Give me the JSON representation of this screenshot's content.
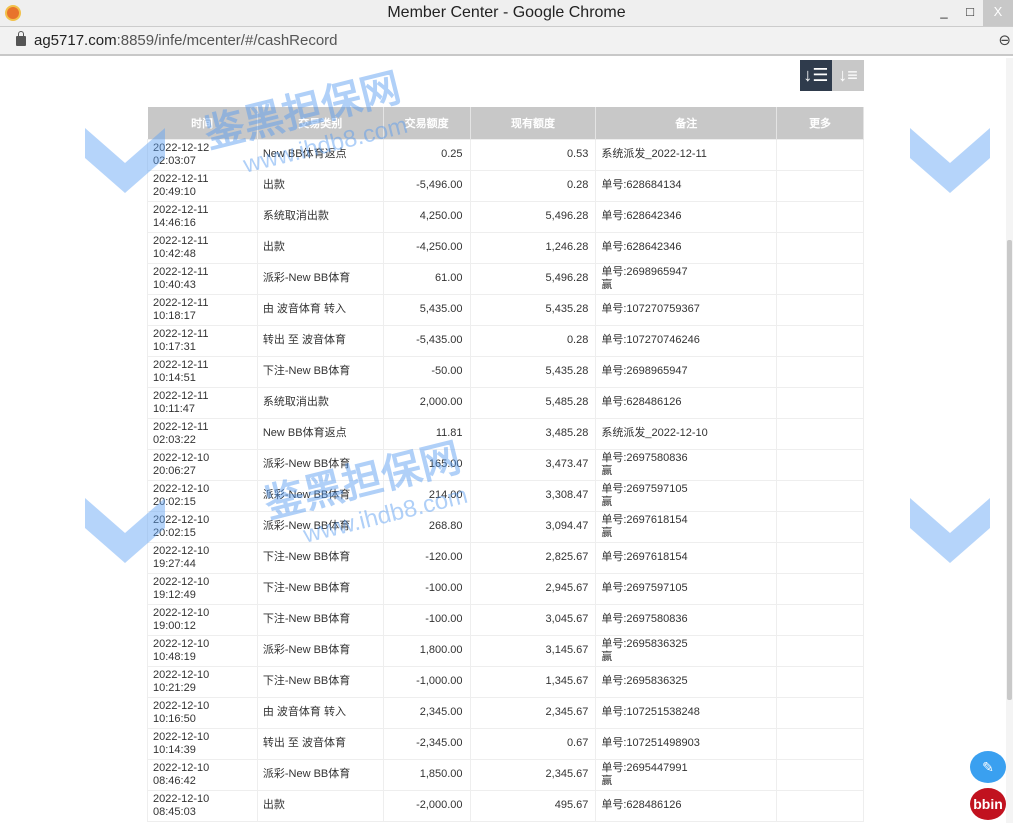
{
  "window": {
    "title": "Member Center - Google Chrome",
    "minimize": "_",
    "maximize": "□",
    "close": "X"
  },
  "address": {
    "host": "ag5717.com",
    "path": ":8859/infe/mcenter/#/cashRecord"
  },
  "watermark": {
    "text": "鉴黑担保网",
    "url": "www.ihdb8.com"
  },
  "sort": {
    "desc_icon": "sort-desc-icon",
    "asc_icon": "sort-asc-icon"
  },
  "table": {
    "headers": [
      "时间",
      "交易类别",
      "交易额度",
      "现有额度",
      "备注",
      "更多"
    ],
    "rows": [
      {
        "time": "2022-12-12 02:03:07",
        "type": "New BB体育返点",
        "amount": "0.25",
        "balance": "0.53",
        "note": "系统派发_2022-12-11",
        "note2": ""
      },
      {
        "time": "2022-12-11 20:49:10",
        "type": "出款",
        "amount": "-5,496.00",
        "balance": "0.28",
        "note": "单号:628684134",
        "note2": ""
      },
      {
        "time": "2022-12-11 14:46:16",
        "type": "系统取消出款",
        "amount": "4,250.00",
        "balance": "5,496.28",
        "note": "单号:628642346",
        "note2": ""
      },
      {
        "time": "2022-12-11 10:42:48",
        "type": "出款",
        "amount": "-4,250.00",
        "balance": "1,246.28",
        "note": "单号:628642346",
        "note2": ""
      },
      {
        "time": "2022-12-11 10:40:43",
        "type": "派彩-New BB体育",
        "amount": "61.00",
        "balance": "5,496.28",
        "note": "单号:2698965947",
        "note2": "赢"
      },
      {
        "time": "2022-12-11 10:18:17",
        "type": "由 波音体育 转入",
        "amount": "5,435.00",
        "balance": "5,435.28",
        "note": "单号:107270759367",
        "note2": ""
      },
      {
        "time": "2022-12-11 10:17:31",
        "type": "转出 至 波音体育",
        "amount": "-5,435.00",
        "balance": "0.28",
        "note": "单号:107270746246",
        "note2": ""
      },
      {
        "time": "2022-12-11 10:14:51",
        "type": "下注-New BB体育",
        "amount": "-50.00",
        "balance": "5,435.28",
        "note": "单号:2698965947",
        "note2": ""
      },
      {
        "time": "2022-12-11 10:11:47",
        "type": "系统取消出款",
        "amount": "2,000.00",
        "balance": "5,485.28",
        "note": "单号:628486126",
        "note2": ""
      },
      {
        "time": "2022-12-11 02:03:22",
        "type": "New BB体育返点",
        "amount": "11.81",
        "balance": "3,485.28",
        "note": "系统派发_2022-12-10",
        "note2": ""
      },
      {
        "time": "2022-12-10 20:06:27",
        "type": "派彩-New BB体育",
        "amount": "165.00",
        "balance": "3,473.47",
        "note": "单号:2697580836",
        "note2": "赢"
      },
      {
        "time": "2022-12-10 20:02:15",
        "type": "派彩-New BB体育",
        "amount": "214.00",
        "balance": "3,308.47",
        "note": "单号:2697597105",
        "note2": "赢"
      },
      {
        "time": "2022-12-10 20:02:15",
        "type": "派彩-New BB体育",
        "amount": "268.80",
        "balance": "3,094.47",
        "note": "单号:2697618154",
        "note2": "赢"
      },
      {
        "time": "2022-12-10 19:27:44",
        "type": "下注-New BB体育",
        "amount": "-120.00",
        "balance": "2,825.67",
        "note": "单号:2697618154",
        "note2": ""
      },
      {
        "time": "2022-12-10 19:12:49",
        "type": "下注-New BB体育",
        "amount": "-100.00",
        "balance": "2,945.67",
        "note": "单号:2697597105",
        "note2": ""
      },
      {
        "time": "2022-12-10 19:00:12",
        "type": "下注-New BB体育",
        "amount": "-100.00",
        "balance": "3,045.67",
        "note": "单号:2697580836",
        "note2": ""
      },
      {
        "time": "2022-12-10 10:48:19",
        "type": "派彩-New BB体育",
        "amount": "1,800.00",
        "balance": "3,145.67",
        "note": "单号:2695836325",
        "note2": "赢"
      },
      {
        "time": "2022-12-10 10:21:29",
        "type": "下注-New BB体育",
        "amount": "-1,000.00",
        "balance": "1,345.67",
        "note": "单号:2695836325",
        "note2": ""
      },
      {
        "time": "2022-12-10 10:16:50",
        "type": "由 波音体育 转入",
        "amount": "2,345.00",
        "balance": "2,345.67",
        "note": "单号:107251538248",
        "note2": ""
      },
      {
        "time": "2022-12-10 10:14:39",
        "type": "转出 至 波音体育",
        "amount": "-2,345.00",
        "balance": "0.67",
        "note": "单号:107251498903",
        "note2": ""
      },
      {
        "time": "2022-12-10 08:46:42",
        "type": "派彩-New BB体育",
        "amount": "1,850.00",
        "balance": "2,345.67",
        "note": "单号:2695447991",
        "note2": "赢"
      },
      {
        "time": "2022-12-10 08:45:03",
        "type": "出款",
        "amount": "-2,000.00",
        "balance": "495.67",
        "note": "单号:628486126",
        "note2": ""
      }
    ]
  },
  "floating": {
    "edit_icon": "edit-icon",
    "bbin_label": "bbin"
  }
}
